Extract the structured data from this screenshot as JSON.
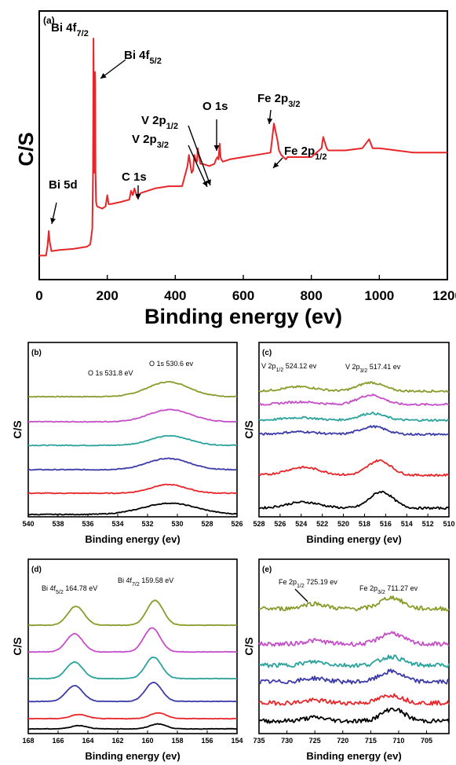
{
  "colors": {
    "red": "#e8262a",
    "olive": "#8a9a2b",
    "magenta": "#c54fc8",
    "teal": "#2aa39d",
    "blue": "#3c3ba9",
    "black": "#000000"
  },
  "chart_data": [
    {
      "type": "line",
      "panel_label": "(a)",
      "xlabel": "Binding energy (ev)",
      "ylabel": "C/S",
      "xlim": [
        0,
        1200
      ],
      "x_ticks": [
        "0",
        "200",
        "400",
        "600",
        "800",
        "1000",
        "1200"
      ],
      "grid": false,
      "series": [
        {
          "color": "red",
          "x": [
            0,
            20,
            25,
            28,
            31,
            36,
            60,
            100,
            140,
            150,
            156,
            158,
            159.5,
            161,
            162,
            163,
            164,
            164.8,
            165.5,
            167,
            170,
            185,
            195,
            200,
            204,
            210,
            240,
            265,
            270,
            275,
            280,
            284,
            288,
            290,
            300,
            340,
            380,
            420,
            436,
            440,
            444,
            448,
            452,
            456,
            460,
            464,
            466,
            470,
            474,
            480,
            500,
            515,
            517.4,
            520,
            524.1,
            527,
            530.6,
            533,
            535,
            540,
            560,
            600,
            640,
            680,
            690,
            700,
            705,
            711.3,
            718,
            725.2,
            730,
            750,
            780,
            800,
            830,
            835,
            845,
            850,
            900,
            950,
            970,
            975,
            980,
            1000,
            1050,
            1100,
            1150,
            1200
          ],
          "y": [
            3,
            3,
            8,
            14,
            9,
            5,
            5.5,
            6,
            7,
            8,
            15,
            40,
            100,
            55,
            40,
            60,
            85,
            80,
            40,
            27,
            25,
            24,
            25,
            30,
            26,
            26,
            27,
            28,
            32,
            30,
            33,
            31,
            29,
            30,
            31,
            33,
            34,
            34,
            43,
            48,
            44,
            40,
            41,
            48,
            46,
            45,
            51,
            47,
            44,
            44,
            43,
            44,
            45,
            46,
            47,
            46,
            53,
            47,
            46,
            45,
            46,
            47,
            48,
            49,
            62,
            55,
            50,
            48,
            47,
            46,
            47,
            47,
            47,
            47,
            51,
            56,
            51,
            50,
            50,
            51,
            55,
            53,
            51,
            51,
            50,
            49,
            49,
            49
          ]
        }
      ],
      "annotations": [
        {
          "text": "Bi 4f7/2",
          "main": "Bi 4f",
          "sub": "7/2",
          "x": 159.5
        },
        {
          "text": "Bi 4f5/2",
          "main": "Bi 4f",
          "sub": "5/2",
          "x": 164.8
        },
        {
          "text": "Bi 5d",
          "main": "Bi 5d",
          "sub": "",
          "x": 28
        },
        {
          "text": "C 1s",
          "main": "C 1s",
          "sub": "",
          "x": 284
        },
        {
          "text": "V 2p1/2",
          "main": "V 2p",
          "sub": "1/2",
          "x": 524.1
        },
        {
          "text": "V 2p3/2",
          "main": "V 2p",
          "sub": "3/2",
          "x": 517.4
        },
        {
          "text": "O 1s",
          "main": "O 1s",
          "sub": "",
          "x": 530.6
        },
        {
          "text": "Fe 2p3/2",
          "main": "Fe 2p",
          "sub": "3/2",
          "x": 711.3
        },
        {
          "text": "Fe 2p1/2",
          "main": "Fe 2p",
          "sub": "1/2",
          "x": 725.2
        }
      ]
    },
    {
      "type": "line",
      "panel_label": "(b)",
      "xlabel": "Binding energy (ev)",
      "ylabel": "C/S",
      "xlim": [
        540,
        526
      ],
      "x_ticks": [
        "540",
        "538",
        "536",
        "534",
        "532",
        "530",
        "528",
        "526"
      ],
      "grid": false,
      "annotations": [
        {
          "main": "O 1s  531.8 eV",
          "sub": ""
        },
        {
          "main": "O 1s  530.6 ev",
          "sub": ""
        }
      ],
      "series": [
        {
          "color": "olive",
          "peaks": [
            {
              "center": 530.6,
              "height": 1.7,
              "width": 1.4
            }
          ]
        },
        {
          "color": "magenta",
          "peaks": [
            {
              "center": 530.5,
              "height": 1.4,
              "width": 1.4
            }
          ]
        },
        {
          "color": "teal",
          "peaks": [
            {
              "center": 530.5,
              "height": 1.1,
              "width": 1.3
            }
          ]
        },
        {
          "color": "blue",
          "peaks": [
            {
              "center": 530.6,
              "height": 1.3,
              "width": 1.4
            }
          ]
        },
        {
          "color": "red",
          "peaks": [
            {
              "center": 530.6,
              "height": 1.0,
              "width": 1.2
            }
          ]
        },
        {
          "color": "black",
          "peaks": [
            {
              "center": 530.5,
              "height": 1.3,
              "width": 1.8
            }
          ]
        }
      ]
    },
    {
      "type": "line",
      "panel_label": "(c)",
      "xlabel": "Binding energy (ev)",
      "ylabel": "C/S",
      "xlim": [
        528,
        510
      ],
      "x_ticks": [
        "528",
        "526",
        "524",
        "522",
        "520",
        "518",
        "516",
        "514",
        "512",
        "510"
      ],
      "grid": false,
      "annotations": [
        {
          "main": "V 2p",
          "sub": "1/2",
          "after": "  524.12 ev"
        },
        {
          "main": "V 2p",
          "sub": "3/2",
          "after": "  517.41 ev"
        }
      ],
      "series": [
        {
          "color": "olive",
          "peaks": [
            {
              "center": 524.1,
              "height": 0.5,
              "width": 1.6
            },
            {
              "center": 517.4,
              "height": 1.0,
              "width": 1.2
            }
          ]
        },
        {
          "color": "magenta",
          "peaks": [
            {
              "center": 524.1,
              "height": 0.3,
              "width": 1.6
            },
            {
              "center": 517.4,
              "height": 1.1,
              "width": 1.2
            }
          ]
        },
        {
          "color": "teal",
          "peaks": [
            {
              "center": 524.1,
              "height": 0.3,
              "width": 1.6
            },
            {
              "center": 517.3,
              "height": 0.8,
              "width": 1.2
            }
          ]
        },
        {
          "color": "blue",
          "peaks": [
            {
              "center": 524.1,
              "height": 0.3,
              "width": 1.6
            },
            {
              "center": 517.2,
              "height": 0.9,
              "width": 1.2
            }
          ]
        },
        {
          "color": "red",
          "peaks": [
            {
              "center": 523.8,
              "height": 0.9,
              "width": 1.6
            },
            {
              "center": 516.6,
              "height": 1.7,
              "width": 1.1
            }
          ]
        },
        {
          "color": "black",
          "peaks": [
            {
              "center": 523.8,
              "height": 0.7,
              "width": 1.6
            },
            {
              "center": 516.4,
              "height": 1.9,
              "width": 1.1
            }
          ]
        }
      ]
    },
    {
      "type": "line",
      "panel_label": "(d)",
      "xlabel": "Binding energy (ev)",
      "ylabel": "C/S",
      "xlim": [
        168,
        154
      ],
      "x_ticks": [
        "168",
        "166",
        "164",
        "162",
        "160",
        "158",
        "156",
        "154"
      ],
      "grid": false,
      "annotations": [
        {
          "main": "Bi 4f",
          "sub": "5/2",
          "after": "  164.78 eV"
        },
        {
          "main": "Bi 4f",
          "sub": "7/2",
          "after": "  159.58 eV"
        }
      ],
      "series": [
        {
          "color": "olive",
          "peaks": [
            {
              "center": 164.8,
              "height": 2.3,
              "width": 0.55
            },
            {
              "center": 159.5,
              "height": 3.0,
              "width": 0.55
            }
          ]
        },
        {
          "color": "magenta",
          "peaks": [
            {
              "center": 164.9,
              "height": 2.2,
              "width": 0.55
            },
            {
              "center": 159.7,
              "height": 2.9,
              "width": 0.55
            }
          ]
        },
        {
          "color": "teal",
          "peaks": [
            {
              "center": 164.9,
              "height": 2.0,
              "width": 0.55
            },
            {
              "center": 159.6,
              "height": 2.6,
              "width": 0.55
            }
          ]
        },
        {
          "color": "blue",
          "peaks": [
            {
              "center": 164.9,
              "height": 1.9,
              "width": 0.55
            },
            {
              "center": 159.6,
              "height": 2.3,
              "width": 0.55
            }
          ]
        },
        {
          "color": "red",
          "peaks": [
            {
              "center": 164.6,
              "height": 0.5,
              "width": 0.55
            },
            {
              "center": 159.3,
              "height": 0.7,
              "width": 0.55
            }
          ]
        },
        {
          "color": "black",
          "peaks": [
            {
              "center": 164.6,
              "height": 0.4,
              "width": 0.55
            },
            {
              "center": 159.3,
              "height": 0.6,
              "width": 0.55
            }
          ]
        }
      ]
    },
    {
      "type": "line",
      "panel_label": "(e)",
      "xlabel": "Binding energy (ev)",
      "ylabel": "C/S",
      "xlim": [
        735,
        701
      ],
      "x_ticks": [
        "735",
        "730",
        "725",
        "720",
        "715",
        "710",
        "705"
      ],
      "grid": false,
      "annotations": [
        {
          "main": "Fe 2p",
          "sub": "1/2",
          "after": "  725.19 ev"
        },
        {
          "main": "Fe 2p",
          "sub": "3/2",
          "after": "  711.27 ev"
        }
      ],
      "series": [
        {
          "color": "olive",
          "peaks": [
            {
              "center": 725.2,
              "height": 0.6,
              "width": 2.0
            },
            {
              "center": 711.3,
              "height": 1.3,
              "width": 2.0
            }
          ]
        },
        {
          "color": "magenta",
          "peaks": [
            {
              "center": 725.0,
              "height": 0.4,
              "width": 2.0
            },
            {
              "center": 711.3,
              "height": 1.3,
              "width": 2.0
            }
          ]
        },
        {
          "color": "teal",
          "peaks": [
            {
              "center": 725.0,
              "height": 0.4,
              "width": 2.0
            },
            {
              "center": 711.3,
              "height": 1.0,
              "width": 2.0
            }
          ]
        },
        {
          "color": "blue",
          "peaks": [
            {
              "center": 725.0,
              "height": 0.4,
              "width": 2.0
            },
            {
              "center": 711.3,
              "height": 1.2,
              "width": 2.0
            }
          ]
        },
        {
          "color": "red",
          "peaks": [
            {
              "center": 725.0,
              "height": 0.3,
              "width": 2.0
            },
            {
              "center": 711.3,
              "height": 0.9,
              "width": 2.0
            }
          ]
        },
        {
          "color": "black",
          "peaks": [
            {
              "center": 725.0,
              "height": 0.4,
              "width": 2.0
            },
            {
              "center": 711.0,
              "height": 1.4,
              "width": 2.0
            }
          ]
        }
      ]
    }
  ]
}
